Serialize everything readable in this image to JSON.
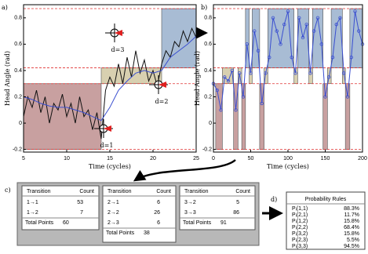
{
  "panel_labels": [
    "a)",
    "b)",
    "c)",
    "d)"
  ],
  "chart_data": [
    {
      "type": "line",
      "xlabel": "Time (cycles)",
      "ylabel": "Head Angle (rad)",
      "xlim": [
        5,
        25
      ],
      "xticks": [
        5,
        10,
        15,
        20,
        25
      ],
      "ylim": [
        -0.22,
        0.9
      ],
      "yticks": [
        -0.2,
        0,
        0.2,
        0.4,
        0.6,
        0.8
      ],
      "thresholds": [
        -0.2,
        0.3,
        0.42,
        0.87
      ],
      "threshold_color": "#e03030",
      "states": [
        {
          "y0": -0.2,
          "y1": 0.3,
          "color": "#c8a0a0"
        },
        {
          "y0": 0.3,
          "y1": 0.42,
          "color": "#d8d0b0"
        },
        {
          "y0": 0.42,
          "y1": 0.87,
          "color": "#a8bcd4"
        }
      ],
      "regions": [
        {
          "x0": 5,
          "x1": 14,
          "state": 0
        },
        {
          "x0": 14,
          "x1": 21,
          "state": 1
        },
        {
          "x0": 21,
          "x1": 25,
          "state": 2
        }
      ],
      "annotations": [
        "d=1",
        "d=2",
        "d=3"
      ],
      "series": [
        {
          "color": "#111111",
          "x": [
            5,
            5.5,
            6,
            6.5,
            7,
            7.5,
            8,
            8.5,
            9,
            9.5,
            10,
            10.5,
            11,
            11.5,
            12,
            12.5,
            13,
            13.5,
            14,
            14.5,
            15,
            15.5,
            16,
            16.5,
            17,
            17.5,
            18,
            18.5,
            19,
            19.5,
            20,
            20.5,
            21,
            21.5,
            22,
            22.5,
            23,
            23.5,
            24,
            24.5,
            25
          ],
          "values": [
            0.05,
            0.2,
            0.12,
            0.25,
            0.08,
            0.2,
            0.0,
            0.15,
            0.1,
            0.22,
            0.05,
            0.15,
            0.0,
            0.2,
            0.05,
            0.1,
            -0.05,
            0.08,
            -0.12,
            0.25,
            0.35,
            0.28,
            0.45,
            0.3,
            0.5,
            0.35,
            0.55,
            0.38,
            0.48,
            0.32,
            0.4,
            0.28,
            0.45,
            0.55,
            0.5,
            0.62,
            0.58,
            0.7,
            0.62,
            0.72,
            0.65
          ]
        },
        {
          "color": "#3a4fd0",
          "x": [
            5,
            6,
            7,
            8,
            9,
            10,
            11,
            12,
            13,
            14,
            15,
            16,
            17,
            18,
            19,
            20,
            21,
            22,
            23,
            24,
            25
          ],
          "values": [
            0.2,
            0.18,
            0.15,
            0.13,
            0.12,
            0.12,
            0.1,
            0.08,
            0.05,
            0.02,
            0.12,
            0.25,
            0.32,
            0.38,
            0.4,
            0.38,
            0.4,
            0.5,
            0.55,
            0.6,
            0.66
          ]
        }
      ]
    },
    {
      "type": "line",
      "xlabel": "Time (cycles)",
      "ylabel": "Head Angle (rad)",
      "xlim": [
        0,
        200
      ],
      "xticks": [
        0,
        50,
        100,
        150,
        200
      ],
      "ylim": [
        -0.22,
        0.9
      ],
      "yticks": [
        -0.2,
        0,
        0.2,
        0.4,
        0.6,
        0.8
      ],
      "thresholds": [
        -0.2,
        0.3,
        0.42,
        0.87
      ],
      "threshold_color": "#e03030",
      "states": [
        {
          "y0": -0.2,
          "y1": 0.3,
          "color": "#c8a0a0"
        },
        {
          "y0": 0.3,
          "y1": 0.42,
          "color": "#d8d0b0"
        },
        {
          "y0": 0.42,
          "y1": 0.87,
          "color": "#a8bcd4"
        }
      ],
      "regions": [
        {
          "x0": 3,
          "x1": 12,
          "state": 0
        },
        {
          "x0": 12,
          "x1": 27,
          "state": 1
        },
        {
          "x0": 27,
          "x1": 33,
          "state": 0
        },
        {
          "x0": 33,
          "x1": 38,
          "state": 1
        },
        {
          "x0": 38,
          "x1": 43,
          "state": 0
        },
        {
          "x0": 43,
          "x1": 48,
          "state": 2
        },
        {
          "x0": 48,
          "x1": 52,
          "state": 1
        },
        {
          "x0": 52,
          "x1": 62,
          "state": 2
        },
        {
          "x0": 62,
          "x1": 68,
          "state": 0
        },
        {
          "x0": 68,
          "x1": 73,
          "state": 1
        },
        {
          "x0": 73,
          "x1": 108,
          "state": 2
        },
        {
          "x0": 108,
          "x1": 113,
          "state": 1
        },
        {
          "x0": 113,
          "x1": 128,
          "state": 2
        },
        {
          "x0": 128,
          "x1": 133,
          "state": 1
        },
        {
          "x0": 133,
          "x1": 147,
          "state": 2
        },
        {
          "x0": 147,
          "x1": 153,
          "state": 0
        },
        {
          "x0": 153,
          "x1": 158,
          "state": 1
        },
        {
          "x0": 158,
          "x1": 173,
          "state": 2
        },
        {
          "x0": 173,
          "x1": 177,
          "state": 1
        },
        {
          "x0": 177,
          "x1": 183,
          "state": 0
        },
        {
          "x0": 183,
          "x1": 200,
          "state": 2
        }
      ],
      "series": [
        {
          "color": "#3a4fd0",
          "marker": "circle",
          "x": [
            0,
            5,
            10,
            15,
            20,
            25,
            30,
            35,
            40,
            45,
            50,
            55,
            60,
            65,
            70,
            75,
            80,
            85,
            90,
            95,
            100,
            105,
            110,
            115,
            120,
            125,
            130,
            135,
            140,
            145,
            150,
            155,
            160,
            165,
            170,
            175,
            180,
            185,
            190,
            195,
            200
          ],
          "values": [
            0.3,
            0.25,
            0.1,
            0.35,
            0.32,
            0.4,
            0.1,
            0.38,
            0.2,
            0.6,
            0.38,
            0.7,
            0.55,
            0.15,
            0.38,
            0.5,
            0.8,
            0.7,
            0.6,
            0.75,
            0.85,
            0.5,
            0.38,
            0.8,
            0.65,
            0.75,
            0.38,
            0.7,
            0.8,
            0.6,
            0.2,
            0.35,
            0.5,
            0.75,
            0.8,
            0.38,
            0.2,
            0.5,
            0.85,
            0.7,
            0.6
          ]
        }
      ]
    }
  ],
  "tables": [
    {
      "headers": [
        "Transition",
        "Count"
      ],
      "rows": [
        [
          "1→1",
          53
        ],
        [
          "1→2",
          7
        ]
      ],
      "total_label": "Total Points",
      "total": 60
    },
    {
      "headers": [
        "Transition",
        "Count"
      ],
      "rows": [
        [
          "2→1",
          6
        ],
        [
          "2→2",
          26
        ],
        [
          "2→3",
          6
        ]
      ],
      "total_label": "Total Points",
      "total": 38
    },
    {
      "headers": [
        "Transition",
        "Count"
      ],
      "rows": [
        [
          "3→2",
          5
        ],
        [
          "3→3",
          86
        ]
      ],
      "total_label": "Total Points",
      "total": 91
    }
  ],
  "probability_rules": {
    "title": "Probability Rules",
    "rows": [
      [
        "Pᵢ(1,1)",
        "88.3%"
      ],
      [
        "Pᵢ(2,1)",
        "11.7%"
      ],
      [
        "Pᵢ(1,2)",
        "15.8%"
      ],
      [
        "Pᵢ(2,2)",
        "68.4%"
      ],
      [
        "Pᵢ(3,2)",
        "15.8%"
      ],
      [
        "Pᵢ(2,3)",
        "5.5%"
      ],
      [
        "Pᵢ(3,3)",
        "94.5%"
      ]
    ]
  }
}
